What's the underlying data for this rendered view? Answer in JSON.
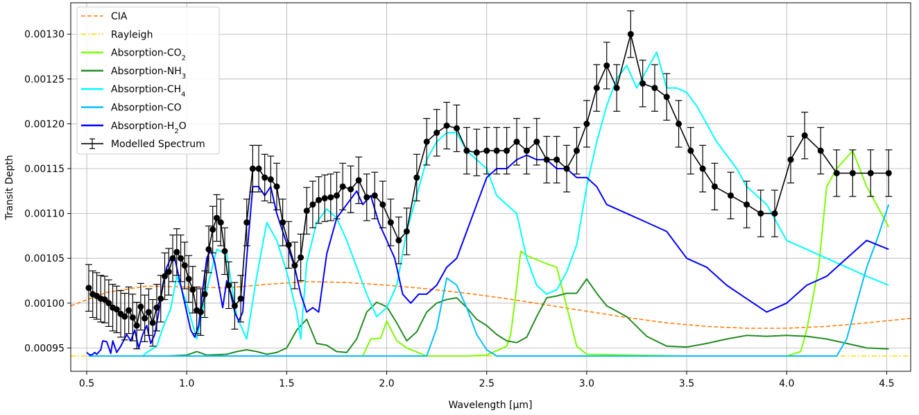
{
  "chart_data": {
    "type": "line",
    "title": "",
    "xlabel": "Wavelength [μm]",
    "ylabel": "Transit Depth",
    "xlim": [
      0.42,
      4.62
    ],
    "ylim": [
      0.000924,
      0.001335
    ],
    "grid": true,
    "legend_placement": "top-left",
    "xticks": [
      0.5,
      1.0,
      1.5,
      2.0,
      2.5,
      3.0,
      3.5,
      4.0,
      4.5
    ],
    "xtick_labels": [
      "0.5",
      "1.0",
      "1.5",
      "2.0",
      "2.5",
      "3.0",
      "3.5",
      "4.0",
      "4.5"
    ],
    "yticks": [
      0.00095,
      0.001,
      0.00105,
      0.0011,
      0.00115,
      0.0012,
      0.00125,
      0.0013
    ],
    "ytick_labels": [
      "0.00095",
      "0.00100",
      "0.00105",
      "0.00110",
      "0.00115",
      "0.00120",
      "0.00125",
      "0.00130"
    ],
    "legend": [
      {
        "label": "CIA",
        "sub": "",
        "color": "#ff7f0e",
        "style": "dashed"
      },
      {
        "label": "Rayleigh",
        "sub": "",
        "color": "#ffd700",
        "style": "dashdot"
      },
      {
        "label": "Absorption-CO",
        "sub": "2",
        "color": "#7cfc00",
        "style": "solid"
      },
      {
        "label": "Absorption-NH",
        "sub": "3",
        "color": "#228b22",
        "style": "solid"
      },
      {
        "label": "Absorption-CH",
        "sub": "4",
        "color": "#00ffff",
        "style": "solid"
      },
      {
        "label": "Absorption-CO",
        "sub": "",
        "color": "#00bfff",
        "style": "solid"
      },
      {
        "label": "Absorption-H",
        "sub": "2",
        "suffix": "O",
        "color": "#0000ff",
        "style": "solid"
      },
      {
        "label": "Modelled Spectrum",
        "sub": "",
        "color": "#000000",
        "style": "errorbar"
      }
    ],
    "series": [
      {
        "name": "CIA",
        "color": "#ff7f0e",
        "style": "dashed",
        "width": 1.6,
        "x": [
          0.42,
          0.6,
          0.8,
          1.0,
          1.2,
          1.4,
          1.6,
          1.8,
          2.0,
          2.2,
          2.4,
          2.6,
          2.8,
          3.0,
          3.2,
          3.4,
          3.6,
          3.8,
          4.0,
          4.2,
          4.4,
          4.62
        ],
        "y": [
          0.000997,
          0.001012,
          0.001019,
          0.001018,
          0.001017,
          0.001021,
          0.001024,
          0.001023,
          0.00102,
          0.001016,
          0.001011,
          0.001005,
          0.000998,
          0.000991,
          0.000984,
          0.000978,
          0.000974,
          0.000972,
          0.000972,
          0.000974,
          0.000978,
          0.000983
        ]
      },
      {
        "name": "Rayleigh",
        "color": "#ffd700",
        "style": "dashdot",
        "width": 1.6,
        "x": [
          0.42,
          4.62
        ],
        "y": [
          0.000941,
          0.000941
        ]
      },
      {
        "name": "Absorption-CO2",
        "color": "#7cfc00",
        "style": "solid",
        "width": 2,
        "x": [
          0.51,
          1.0,
          1.5,
          1.88,
          1.92,
          1.97,
          2.0,
          2.05,
          2.1,
          2.2,
          2.4,
          2.5,
          2.6,
          2.62,
          2.64,
          2.67,
          2.7,
          2.8,
          2.85,
          2.95,
          3.0,
          3.5,
          4.0,
          4.07,
          4.1,
          4.16,
          4.2,
          4.25,
          4.33,
          4.4,
          4.51
        ],
        "y": [
          0.000941,
          0.000941,
          0.000941,
          0.000941,
          0.00096,
          0.000961,
          0.00098,
          0.000958,
          0.00095,
          0.000941,
          0.000941,
          0.000942,
          0.000952,
          0.000965,
          0.001,
          0.001058,
          0.001053,
          0.001044,
          0.00104,
          0.000952,
          0.000943,
          0.000941,
          0.000941,
          0.000946,
          0.00097,
          0.00104,
          0.00113,
          0.00115,
          0.00117,
          0.00113,
          0.001085
        ]
      },
      {
        "name": "Absorption-NH3",
        "color": "#228b22",
        "style": "solid",
        "width": 2,
        "x": [
          0.51,
          0.9,
          1.0,
          1.05,
          1.1,
          1.2,
          1.25,
          1.3,
          1.35,
          1.4,
          1.45,
          1.5,
          1.55,
          1.6,
          1.65,
          1.7,
          1.75,
          1.8,
          1.85,
          1.9,
          1.95,
          2.0,
          2.05,
          2.1,
          2.15,
          2.2,
          2.25,
          2.3,
          2.35,
          2.4,
          2.45,
          2.5,
          2.55,
          2.6,
          2.65,
          2.7,
          2.75,
          2.8,
          2.85,
          2.9,
          2.95,
          3.0,
          3.05,
          3.1,
          3.2,
          3.3,
          3.4,
          3.5,
          3.6,
          3.7,
          3.8,
          3.9,
          4.0,
          4.1,
          4.2,
          4.3,
          4.4,
          4.51
        ],
        "y": [
          0.000941,
          0.000941,
          0.000942,
          0.000946,
          0.000942,
          0.000943,
          0.000946,
          0.000948,
          0.000946,
          0.000943,
          0.000945,
          0.00095,
          0.00097,
          0.000982,
          0.000955,
          0.000953,
          0.000946,
          0.000945,
          0.00096,
          0.00099,
          0.001001,
          0.000996,
          0.000978,
          0.000958,
          0.000968,
          0.00099,
          0.001,
          0.001004,
          0.001006,
          0.000995,
          0.000982,
          0.000975,
          0.000965,
          0.000958,
          0.000956,
          0.000962,
          0.000985,
          0.001006,
          0.001008,
          0.001011,
          0.001011,
          0.001027,
          0.001011,
          0.000997,
          0.000985,
          0.000963,
          0.000952,
          0.000951,
          0.000955,
          0.00096,
          0.000964,
          0.000963,
          0.000964,
          0.000963,
          0.00096,
          0.000955,
          0.00095,
          0.000949
        ]
      },
      {
        "name": "Absorption-CH4",
        "color": "#00ffff",
        "style": "solid",
        "width": 2,
        "x": [
          0.51,
          0.78,
          0.8,
          0.85,
          0.88,
          0.92,
          0.95,
          1.0,
          1.05,
          1.1,
          1.15,
          1.2,
          1.25,
          1.3,
          1.35,
          1.4,
          1.45,
          1.5,
          1.55,
          1.57,
          1.6,
          1.65,
          1.7,
          1.75,
          1.8,
          1.85,
          1.9,
          1.95,
          2.0,
          2.05,
          2.1,
          2.15,
          2.2,
          2.25,
          2.3,
          2.35,
          2.4,
          2.45,
          2.5,
          2.55,
          2.6,
          2.65,
          2.7,
          2.75,
          2.8,
          2.85,
          2.9,
          2.95,
          3.0,
          3.05,
          3.1,
          3.15,
          3.2,
          3.25,
          3.3,
          3.35,
          3.4,
          3.45,
          3.5,
          3.55,
          3.6,
          3.65,
          3.7,
          3.75,
          3.8,
          3.85,
          3.9,
          3.95,
          4.0,
          4.1,
          4.2,
          4.3,
          4.4,
          4.51
        ],
        "y": [
          0.000941,
          0.000941,
          0.000945,
          0.000952,
          0.000972,
          0.000994,
          0.00103,
          0.001,
          0.00096,
          0.001015,
          0.00106,
          0.001055,
          0.000985,
          0.00096,
          0.00103,
          0.00109,
          0.00107,
          0.001035,
          0.00099,
          0.00096,
          0.001045,
          0.00109,
          0.001105,
          0.001095,
          0.00107,
          0.00104,
          0.00101,
          0.000985,
          0.000995,
          0.00102,
          0.00108,
          0.00112,
          0.00116,
          0.00118,
          0.00119,
          0.00119,
          0.00117,
          0.00116,
          0.00115,
          0.00112,
          0.00111,
          0.0011,
          0.00105,
          0.00102,
          0.00101,
          0.001015,
          0.001035,
          0.001065,
          0.00113,
          0.00118,
          0.00122,
          0.00125,
          0.001265,
          0.00124,
          0.00126,
          0.00128,
          0.00124,
          0.00124,
          0.001235,
          0.00122,
          0.0012,
          0.00118,
          0.001165,
          0.00115,
          0.00113,
          0.00112,
          0.00111,
          0.00109,
          0.00107,
          0.00106,
          0.00105,
          0.00104,
          0.00103,
          0.00102
        ]
      },
      {
        "name": "Absorption-CO",
        "color": "#00bfff",
        "style": "solid",
        "width": 2,
        "x": [
          0.51,
          2.2,
          2.25,
          2.3,
          2.35,
          2.4,
          2.45,
          2.5,
          2.55,
          2.6,
          3.0,
          4.0,
          4.25,
          4.3,
          4.35,
          4.4,
          4.45,
          4.51
        ],
        "y": [
          0.000941,
          0.000941,
          0.000972,
          0.001028,
          0.00102,
          0.000995,
          0.000965,
          0.000948,
          0.000941,
          0.000941,
          0.000941,
          0.000941,
          0.000941,
          0.00096,
          0.001,
          0.00104,
          0.00107,
          0.00111
        ]
      },
      {
        "name": "Absorption-H2O",
        "color": "#0000ff",
        "style": "solid",
        "width": 2,
        "x": [
          0.5,
          0.51,
          0.52,
          0.53,
          0.54,
          0.55,
          0.57,
          0.58,
          0.6,
          0.62,
          0.63,
          0.65,
          0.67,
          0.7,
          0.72,
          0.74,
          0.76,
          0.78,
          0.8,
          0.82,
          0.84,
          0.86,
          0.88,
          0.9,
          0.92,
          0.94,
          0.96,
          0.98,
          1.0,
          1.02,
          1.04,
          1.06,
          1.08,
          1.1,
          1.12,
          1.14,
          1.16,
          1.18,
          1.2,
          1.22,
          1.24,
          1.26,
          1.28,
          1.3,
          1.33,
          1.36,
          1.39,
          1.42,
          1.45,
          1.48,
          1.51,
          1.54,
          1.57,
          1.6,
          1.63,
          1.66,
          1.7,
          1.75,
          1.8,
          1.85,
          1.88,
          1.92,
          1.96,
          2.0,
          2.04,
          2.08,
          2.12,
          2.16,
          2.2,
          2.25,
          2.3,
          2.35,
          2.4,
          2.45,
          2.5,
          2.55,
          2.6,
          2.65,
          2.7,
          2.75,
          2.8,
          2.85,
          2.9,
          2.95,
          3.0,
          3.05,
          3.1,
          3.2,
          3.3,
          3.4,
          3.5,
          3.6,
          3.7,
          3.8,
          3.9,
          4.0,
          4.1,
          4.2,
          4.3,
          4.4,
          4.51
        ],
        "y": [
          0.000945,
          0.000943,
          0.000942,
          0.000943,
          0.000945,
          0.000943,
          0.000948,
          0.000958,
          0.000957,
          0.000944,
          0.000958,
          0.000945,
          0.000952,
          0.000965,
          0.000958,
          0.00097,
          0.00095,
          0.000965,
          0.000975,
          0.000955,
          0.000965,
          0.00099,
          0.00102,
          0.00104,
          0.00105,
          0.00105,
          0.00103,
          0.00101,
          0.00099,
          0.00097,
          0.000962,
          0.000975,
          0.001015,
          0.00105,
          0.00106,
          0.001045,
          0.00102,
          0.000995,
          0.001025,
          0.00101,
          0.00099,
          0.00098,
          0.00099,
          0.00105,
          0.00113,
          0.00113,
          0.00112,
          0.00113,
          0.0011,
          0.00108,
          0.00106,
          0.00104,
          0.00101,
          0.00099,
          0.000995,
          0.00099,
          0.001055,
          0.001095,
          0.00111,
          0.001125,
          0.00111,
          0.00112,
          0.00109,
          0.00107,
          0.00105,
          0.00101,
          0.001,
          0.00101,
          0.00101,
          0.00102,
          0.00104,
          0.00105,
          0.00108,
          0.00111,
          0.00114,
          0.00115,
          0.00115,
          0.00116,
          0.001165,
          0.00116,
          0.00116,
          0.00115,
          0.00115,
          0.00114,
          0.00114,
          0.00113,
          0.00111,
          0.0011,
          0.00109,
          0.00108,
          0.00105,
          0.00104,
          0.00102,
          0.001005,
          0.00099,
          0.001,
          0.00102,
          0.00103,
          0.00105,
          0.00107,
          0.00106
        ]
      }
    ],
    "modelled_spectrum": {
      "name": "Modelled Spectrum",
      "color": "#000000",
      "x": [
        0.51,
        0.53,
        0.55,
        0.57,
        0.59,
        0.61,
        0.63,
        0.65,
        0.67,
        0.69,
        0.71,
        0.73,
        0.75,
        0.77,
        0.79,
        0.81,
        0.83,
        0.85,
        0.87,
        0.89,
        0.91,
        0.93,
        0.95,
        0.97,
        0.99,
        1.01,
        1.03,
        1.05,
        1.07,
        1.09,
        1.11,
        1.13,
        1.15,
        1.17,
        1.19,
        1.21,
        1.24,
        1.27,
        1.3,
        1.33,
        1.36,
        1.39,
        1.42,
        1.45,
        1.48,
        1.51,
        1.54,
        1.57,
        1.6,
        1.63,
        1.66,
        1.69,
        1.72,
        1.75,
        1.78,
        1.82,
        1.86,
        1.9,
        1.94,
        1.98,
        2.02,
        2.06,
        2.1,
        2.15,
        2.2,
        2.25,
        2.3,
        2.35,
        2.4,
        2.45,
        2.5,
        2.55,
        2.6,
        2.65,
        2.7,
        2.75,
        2.8,
        2.85,
        2.9,
        2.95,
        3.0,
        3.05,
        3.1,
        3.15,
        3.22,
        3.28,
        3.34,
        3.4,
        3.46,
        3.52,
        3.58,
        3.64,
        3.72,
        3.8,
        3.87,
        3.94,
        4.02,
        4.09,
        4.17,
        4.25,
        4.33,
        4.42,
        4.51
      ],
      "y": [
        0.001017,
        0.00101,
        0.001008,
        0.001005,
        0.001004,
        0.001,
        0.000995,
        0.000993,
        0.000988,
        0.000985,
        0.000992,
        0.000984,
        0.000975,
        0.000996,
        0.000983,
        0.00099,
        0.000978,
        0.000995,
        0.001005,
        0.00103,
        0.001035,
        0.00105,
        0.001057,
        0.00105,
        0.001042,
        0.001027,
        0.001015,
        0.000992,
        0.00099,
        0.00101,
        0.00106,
        0.001082,
        0.001095,
        0.00109,
        0.001058,
        0.00102,
        0.000997,
        0.001005,
        0.00109,
        0.00115,
        0.00115,
        0.00114,
        0.001138,
        0.00113,
        0.00109,
        0.001065,
        0.001042,
        0.001051,
        0.001103,
        0.00111,
        0.001115,
        0.001117,
        0.001118,
        0.00112,
        0.00113,
        0.001127,
        0.001137,
        0.001118,
        0.00112,
        0.00111,
        0.00109,
        0.00107,
        0.00108,
        0.00114,
        0.00118,
        0.00119,
        0.001198,
        0.001195,
        0.00117,
        0.001168,
        0.00117,
        0.00117,
        0.00117,
        0.00118,
        0.00117,
        0.00118,
        0.00116,
        0.00116,
        0.00115,
        0.00117,
        0.0012,
        0.00124,
        0.001265,
        0.00124,
        0.0013,
        0.001245,
        0.00124,
        0.00123,
        0.0012,
        0.00117,
        0.00115,
        0.00113,
        0.00112,
        0.00111,
        0.0011,
        0.0011,
        0.00116,
        0.001187,
        0.00117,
        0.001145,
        0.001145,
        0.001145,
        0.001145
      ],
      "yerr": 2.6e-05
    }
  }
}
